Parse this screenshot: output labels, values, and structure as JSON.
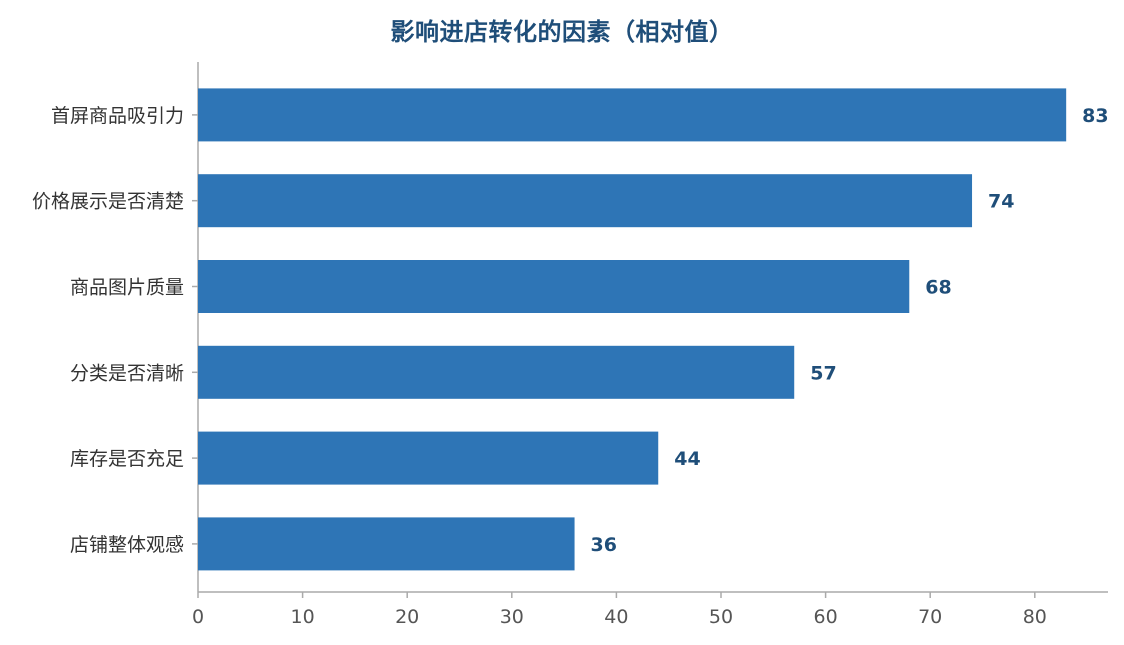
{
  "chart_data": {
    "type": "bar",
    "orientation": "horizontal",
    "title": "影响进店转化的因素（相对值）",
    "xlabel": "",
    "ylabel": "",
    "categories": [
      "首屏商品吸引力",
      "价格展示是否清楚",
      "商品图片质量",
      "分类是否清晰",
      "库存是否充足",
      "店铺整体观感"
    ],
    "values": [
      83,
      74,
      68,
      57,
      44,
      36
    ],
    "xlim": [
      0,
      87
    ],
    "xticks": [
      0,
      10,
      20,
      30,
      40,
      50,
      60,
      70,
      80
    ],
    "grid": false,
    "legend": "none",
    "bar_color": "#2e75b6",
    "value_label_color": "#1f4e79",
    "axis_color": "#aaaaaa"
  }
}
